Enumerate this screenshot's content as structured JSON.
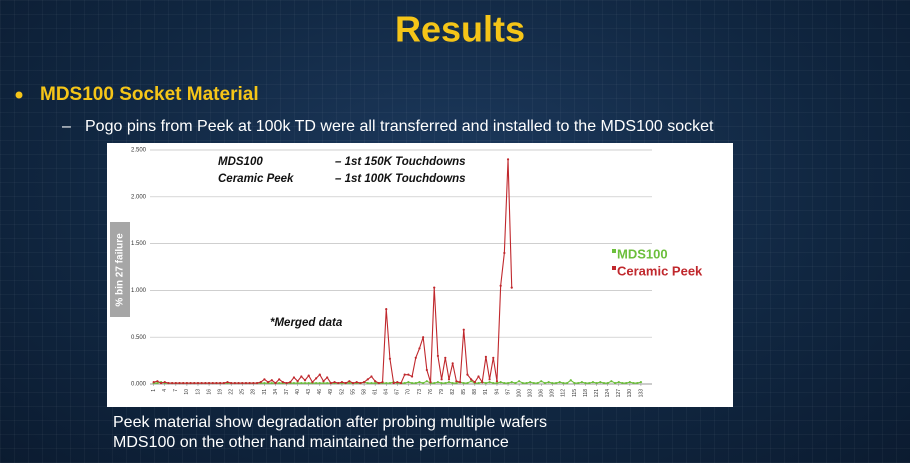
{
  "slide": {
    "title": "Results",
    "bullet": "MDS100 Socket Material",
    "sub_bullet": "Pogo pins from Peek at 100k TD were all transferred and installed to the MDS100 socket",
    "footer_lines": [
      "Peek material show degradation after probing multiple wafers",
      "MDS100 on the other hand maintained the performance"
    ]
  },
  "chart_data": {
    "type": "line",
    "y_label": "% bin 27 failure",
    "annotations": [
      "MDS100",
      "– 1st 150K Touchdowns",
      "Ceramic Peek",
      "– 1st 100K Touchdowns",
      "*Merged data"
    ],
    "x": [
      1,
      2,
      3,
      4,
      5,
      6,
      7,
      8,
      9,
      10,
      11,
      12,
      13,
      14,
      15,
      16,
      17,
      18,
      19,
      20,
      21,
      22,
      23,
      24,
      25,
      26,
      27,
      28,
      29,
      30,
      31,
      32,
      33,
      34,
      35,
      36,
      37,
      38,
      39,
      40,
      41,
      42,
      43,
      44,
      45,
      46,
      47,
      48,
      49,
      50,
      51,
      52,
      53,
      54,
      55,
      56,
      57,
      58,
      59,
      60,
      61,
      62,
      63,
      64,
      65,
      66,
      67,
      68,
      69,
      70,
      71,
      72,
      73,
      74,
      75,
      76,
      77,
      78,
      79,
      80,
      81,
      82,
      83,
      84,
      85,
      86,
      87,
      88,
      89,
      90,
      91,
      92,
      93,
      94,
      95,
      96,
      97,
      98,
      99,
      100,
      101,
      102,
      103,
      104,
      105,
      106,
      107,
      108,
      109,
      110,
      111,
      112,
      113,
      114,
      115,
      116,
      117,
      118,
      119,
      120,
      121,
      122,
      123,
      124,
      125,
      126,
      127,
      128,
      129,
      130,
      131,
      132,
      133
    ],
    "series": [
      {
        "name": "MDS100",
        "color": "#6cbf3c",
        "values": [
          0.01,
          0.01,
          0.02,
          0.01,
          0.01,
          0.01,
          0.01,
          0.01,
          0.01,
          0.01,
          0.01,
          0.01,
          0.01,
          0.01,
          0.01,
          0.01,
          0.01,
          0.01,
          0.01,
          0.01,
          0.01,
          0.01,
          0.01,
          0.01,
          0.01,
          0.01,
          0.01,
          0.01,
          0.01,
          0.01,
          0.01,
          0.01,
          0.01,
          0.01,
          0.01,
          0.01,
          0.01,
          0.01,
          0.01,
          0.01,
          0.01,
          0.01,
          0.01,
          0.01,
          0.01,
          0.01,
          0.01,
          0.01,
          0.01,
          0.01,
          0.01,
          0.01,
          0.01,
          0.01,
          0.01,
          0.01,
          0.01,
          0.02,
          0.01,
          0.01,
          0.01,
          0.01,
          0.01,
          0.01,
          0.01,
          0.02,
          0.01,
          0.01,
          0.01,
          0.02,
          0.01,
          0.01,
          0.02,
          0.01,
          0.03,
          0.01,
          0.01,
          0.02,
          0.01,
          0.01,
          0.02,
          0.01,
          0.01,
          0.02,
          0.01,
          0.01,
          0.03,
          0.01,
          0.01,
          0.02,
          0.01,
          0.02,
          0.01,
          0.01,
          0.02,
          0.01,
          0.01,
          0.02,
          0.01,
          0.03,
          0.01,
          0.01,
          0.02,
          0.01,
          0.01,
          0.03,
          0.01,
          0.02,
          0.01,
          0.01,
          0.02,
          0.01,
          0.01,
          0.04,
          0.01,
          0.01,
          0.02,
          0.01,
          0.01,
          0.02,
          0.01,
          0.02,
          0.01,
          0.01,
          0.03,
          0.01,
          0.02,
          0.01,
          0.01,
          0.02,
          0.01,
          0.01,
          0.02
        ]
      },
      {
        "name": "Ceramic Peek",
        "color": "#c0282d",
        "values": [
          0.02,
          0.03,
          0.01,
          0.02,
          0.01,
          0.01,
          0.01,
          0.01,
          0.01,
          0.01,
          0.01,
          0.01,
          0.01,
          0.01,
          0.01,
          0.01,
          0.01,
          0.01,
          0.01,
          0.01,
          0.02,
          0.01,
          0.01,
          0.01,
          0.01,
          0.01,
          0.01,
          0.01,
          0.01,
          0.02,
          0.05,
          0.02,
          0.04,
          0.01,
          0.05,
          0.02,
          0.01,
          0.02,
          0.07,
          0.03,
          0.08,
          0.04,
          0.09,
          0.02,
          0.06,
          0.1,
          0.03,
          0.07,
          0.01,
          0.02,
          0.01,
          0.02,
          0.01,
          0.03,
          0.01,
          0.02,
          0.01,
          0.02,
          0.05,
          0.08,
          0.03,
          0.01,
          0.02,
          0.8,
          0.27,
          0.01,
          0.02,
          0.01,
          0.1,
          0.1,
          0.08,
          0.28,
          0.38,
          0.5,
          0.15,
          0.02,
          1.03,
          0.3,
          0.05,
          0.28,
          0.05,
          0.22,
          0.03,
          0.02,
          0.58,
          0.1,
          0.05,
          0.02,
          0.08,
          0.02,
          0.29,
          0.05,
          0.28,
          0.03,
          1.05,
          1.4,
          2.4,
          1.03,
          null,
          null,
          null,
          null,
          null,
          null,
          null,
          null,
          null,
          null,
          null,
          null,
          null,
          null,
          null,
          null,
          null,
          null,
          null,
          null,
          null,
          null,
          null,
          null,
          null,
          null,
          null,
          null,
          null,
          null,
          null,
          null,
          null,
          null,
          null
        ]
      }
    ],
    "xlim": [
      0,
      136
    ],
    "xticks": [
      1,
      4,
      7,
      10,
      13,
      16,
      19,
      22,
      25,
      28,
      31,
      34,
      37,
      40,
      43,
      46,
      49,
      52,
      55,
      58,
      61,
      64,
      67,
      70,
      73,
      76,
      79,
      82,
      85,
      88,
      91,
      94,
      97,
      100,
      103,
      106,
      109,
      112,
      115,
      118,
      121,
      124,
      127,
      130,
      133
    ],
    "ylim": [
      0,
      2.5
    ],
    "yticks": [
      {
        "value": 0,
        "label": "0.000"
      },
      {
        "value": 0.5,
        "label": "0.500"
      },
      {
        "value": 1,
        "label": "1.000"
      },
      {
        "value": 1.5,
        "label": "1.500"
      },
      {
        "value": 2,
        "label": "2.000"
      },
      {
        "value": 2.5,
        "label": "2.500"
      }
    ],
    "grid": true,
    "legend": "right"
  }
}
